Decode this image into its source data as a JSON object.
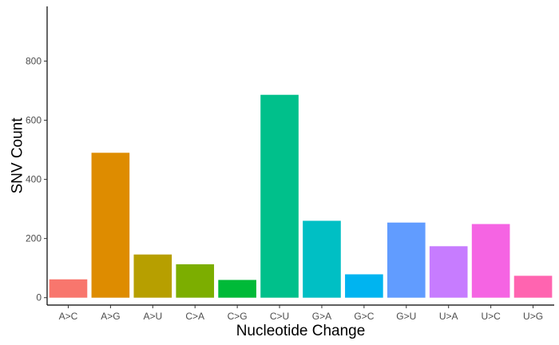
{
  "chart_data": {
    "type": "bar",
    "categories": [
      "A>C",
      "A>G",
      "A>U",
      "C>A",
      "C>G",
      "C>U",
      "G>A",
      "G>C",
      "G>U",
      "U>A",
      "U>C",
      "U>G"
    ],
    "values": [
      62,
      490,
      146,
      113,
      60,
      686,
      260,
      79,
      254,
      174,
      249,
      74
    ],
    "colors": [
      "#F8766D",
      "#DE8C00",
      "#B79F00",
      "#7CAE00",
      "#00BA38",
      "#00C08B",
      "#00BFC4",
      "#00B4F0",
      "#619CFF",
      "#C77CFF",
      "#F564E3",
      "#FF64B0"
    ],
    "xlabel": "Nucleotide Change",
    "ylabel": "SNV Count",
    "ylim": [
      -25,
      985
    ],
    "yticks": [
      0,
      200,
      400,
      600,
      800
    ],
    "grid": false,
    "legend": "none"
  }
}
